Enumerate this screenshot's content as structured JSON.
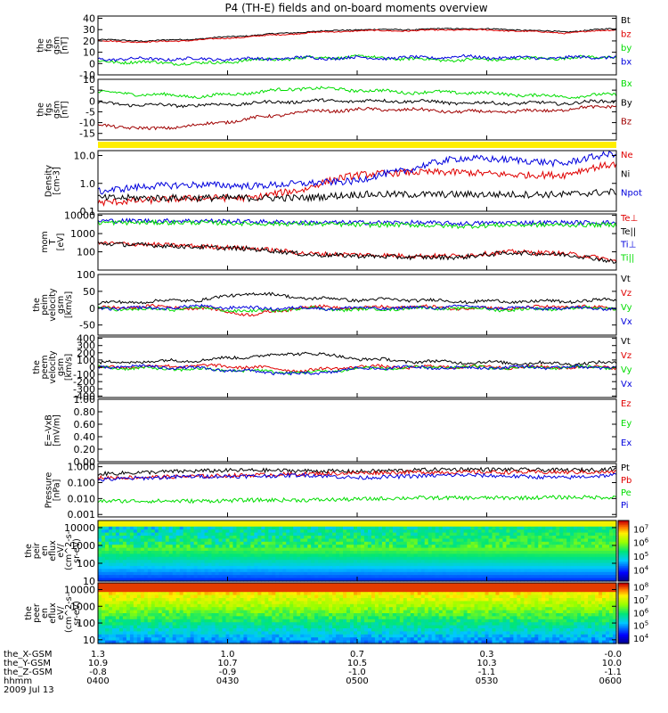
{
  "title": "P4 (TH-E) fields and on-board moments overview",
  "time_axis": {
    "tick_labels": [
      "0400",
      "0430",
      "0500",
      "0530",
      "0600"
    ],
    "row_labels": [
      "the_X-GSM",
      "the_Y-GSM",
      "the_Z-GSM",
      "hhmm",
      "2009 Jul 13"
    ],
    "x_gsm": [
      "1.3",
      "1.0",
      "0.7",
      "0.3",
      "-0.0"
    ],
    "y_gsm": [
      "10.9",
      "10.7",
      "10.5",
      "10.3",
      "10.0"
    ],
    "z_gsm": [
      "-0.8",
      "-0.9",
      "-1.0",
      "-1.1",
      "-1.1"
    ]
  },
  "colors": {
    "black": "#000000",
    "red": "#e00000",
    "green": "#00dd00",
    "blue": "#0000dd",
    "darkred": "#a00000",
    "yellow": "#ffee00"
  },
  "chart_data": [
    {
      "type": "line",
      "id": "fgs_tot",
      "scale": "linear",
      "ylabel": [
        "the",
        "fgs",
        "gsm",
        "[nT]"
      ],
      "ylim": [
        -10,
        42
      ],
      "yticks": [
        "40",
        "30",
        "20",
        "10",
        "0",
        "-10"
      ],
      "yticks_v": [
        40,
        30,
        20,
        10,
        0,
        -10
      ],
      "series": [
        {
          "name": "Bt",
          "color": "#000000",
          "x": [
            0,
            0.1,
            0.2,
            0.3,
            0.4,
            0.5,
            0.6,
            0.7,
            0.8,
            0.9,
            1.0
          ],
          "values": [
            21,
            20,
            22,
            25,
            28,
            30,
            30,
            31,
            30,
            28,
            31
          ]
        },
        {
          "name": "bz",
          "color": "#e00000",
          "x": [
            0,
            0.1,
            0.2,
            0.3,
            0.4,
            0.5,
            0.6,
            0.7,
            0.8,
            0.9,
            1.0
          ],
          "values": [
            20,
            19,
            21,
            24,
            27,
            29,
            29,
            30,
            29,
            27,
            30
          ]
        },
        {
          "name": "by",
          "color": "#00dd00",
          "x": [
            0,
            0.1,
            0.2,
            0.3,
            0.4,
            0.5,
            0.6,
            0.7,
            0.8,
            0.9,
            1.0
          ],
          "values": [
            2,
            1,
            0,
            3,
            5,
            6,
            4,
            3,
            4,
            5,
            6
          ]
        },
        {
          "name": "bx",
          "color": "#0000dd",
          "x": [
            0,
            0.1,
            0.2,
            0.3,
            0.4,
            0.5,
            0.6,
            0.7,
            0.8,
            0.9,
            1.0
          ],
          "values": [
            4,
            4,
            4,
            4,
            5,
            5,
            5,
            6,
            5,
            5,
            6
          ]
        }
      ]
    },
    {
      "type": "line",
      "id": "fgs_comp",
      "scale": "linear",
      "ylabel": [
        "the",
        "fgs",
        "gsm",
        "[nT]"
      ],
      "ylim": [
        -18,
        10
      ],
      "yticks": [
        "10",
        "5",
        "0",
        "-5",
        "-10",
        "-15"
      ],
      "yticks_v": [
        10,
        5,
        0,
        -5,
        -10,
        -15
      ],
      "series": [
        {
          "name": "Bx",
          "color": "#00dd00",
          "x": [
            0,
            0.1,
            0.2,
            0.3,
            0.4,
            0.5,
            0.6,
            0.7,
            0.8,
            0.9,
            1.0
          ],
          "values": [
            4,
            3,
            2,
            4,
            6,
            5,
            4,
            4,
            3,
            2,
            3
          ]
        },
        {
          "name": "By",
          "color": "#000000",
          "x": [
            0,
            0.1,
            0.2,
            0.3,
            0.4,
            0.5,
            0.6,
            0.7,
            0.8,
            0.9,
            1.0
          ],
          "values": [
            -1,
            -2,
            -2,
            -1,
            0,
            0,
            0,
            -1,
            -1,
            -1,
            0
          ]
        },
        {
          "name": "Bz",
          "color": "#a00000",
          "x": [
            0,
            0.1,
            0.2,
            0.3,
            0.4,
            0.5,
            0.6,
            0.7,
            0.8,
            0.9,
            1.0
          ],
          "values": [
            -11,
            -13,
            -11,
            -8,
            -5,
            -4,
            -4,
            -5,
            -5,
            -4,
            -2
          ]
        }
      ]
    },
    {
      "type": "line",
      "id": "density",
      "scale": "log",
      "ylabel": [
        "Density",
        "[cm-3]"
      ],
      "ylim": [
        0.1,
        15
      ],
      "yticks": [
        "10.0",
        "1.0",
        "0.1"
      ],
      "yticks_v": [
        10,
        1,
        0.1
      ],
      "series": [
        {
          "name": "Ne",
          "color": "#e00000",
          "x": [
            0,
            0.1,
            0.2,
            0.3,
            0.4,
            0.5,
            0.6,
            0.7,
            0.8,
            0.9,
            1.0
          ],
          "values": [
            0.2,
            0.25,
            0.3,
            0.3,
            0.6,
            2.0,
            2.5,
            2.5,
            2.0,
            2.0,
            5.0
          ]
        },
        {
          "name": "Ni",
          "color": "#000000",
          "x": [
            0,
            0.1,
            0.2,
            0.3,
            0.4,
            0.5,
            0.6,
            0.7,
            0.8,
            0.9,
            1.0
          ],
          "values": [
            0.3,
            0.3,
            0.3,
            0.3,
            0.3,
            0.4,
            0.4,
            0.4,
            0.4,
            0.4,
            0.5
          ]
        },
        {
          "name": "Npot",
          "color": "#0000dd",
          "x": [
            0,
            0.1,
            0.2,
            0.3,
            0.4,
            0.5,
            0.6,
            0.7,
            0.8,
            0.9,
            1.0
          ],
          "values": [
            0.5,
            0.8,
            0.9,
            0.8,
            1.0,
            1.2,
            3.0,
            8.0,
            7.0,
            5.0,
            12.0
          ]
        }
      ]
    },
    {
      "type": "line",
      "id": "mom",
      "scale": "log",
      "ylabel": [
        "mom",
        "T",
        "[eV]"
      ],
      "ylim": [
        10,
        12000
      ],
      "yticks": [
        "10000",
        "1000",
        "100"
      ],
      "yticks_v": [
        10000,
        1000,
        100
      ],
      "series": [
        {
          "name": "Te⊥",
          "color": "#e00000",
          "x": [
            0,
            0.1,
            0.2,
            0.3,
            0.4,
            0.5,
            0.6,
            0.7,
            0.8,
            0.9,
            1.0
          ],
          "values": [
            300,
            250,
            200,
            150,
            80,
            70,
            60,
            60,
            100,
            80,
            30
          ]
        },
        {
          "name": "Te||",
          "color": "#000000",
          "x": [
            0,
            0.1,
            0.2,
            0.3,
            0.4,
            0.5,
            0.6,
            0.7,
            0.8,
            0.9,
            1.0
          ],
          "values": [
            280,
            230,
            180,
            140,
            70,
            60,
            50,
            50,
            90,
            70,
            25
          ]
        },
        {
          "name": "Ti⊥",
          "color": "#0000dd",
          "x": [
            0,
            0.1,
            0.2,
            0.3,
            0.4,
            0.5,
            0.6,
            0.7,
            0.8,
            0.9,
            1.0
          ],
          "values": [
            5000,
            5000,
            5000,
            4500,
            4000,
            4000,
            4000,
            3500,
            4000,
            4000,
            4000
          ]
        },
        {
          "name": "Ti||",
          "color": "#00dd00",
          "x": [
            0,
            0.1,
            0.2,
            0.3,
            0.4,
            0.5,
            0.6,
            0.7,
            0.8,
            0.9,
            1.0
          ],
          "values": [
            4000,
            4000,
            4000,
            3500,
            3500,
            3000,
            3000,
            2500,
            3000,
            3000,
            3000
          ]
        }
      ]
    },
    {
      "type": "line",
      "id": "peim",
      "scale": "linear",
      "ylabel": [
        "the",
        "peim",
        "velocity",
        "gsm",
        "[km/s]"
      ],
      "ylim": [
        -80,
        100
      ],
      "yticks": [
        "100",
        "50",
        "0",
        "-50"
      ],
      "yticks_v": [
        100,
        50,
        0,
        -50
      ],
      "series": [
        {
          "name": "Vt",
          "color": "#000000",
          "x": [
            0,
            0.1,
            0.2,
            0.3,
            0.4,
            0.5,
            0.6,
            0.7,
            0.8,
            0.9,
            1.0
          ],
          "values": [
            15,
            20,
            25,
            45,
            30,
            25,
            25,
            20,
            20,
            20,
            25
          ]
        },
        {
          "name": "Vz",
          "color": "#e00000",
          "x": [
            0,
            0.1,
            0.2,
            0.3,
            0.4,
            0.5,
            0.6,
            0.7,
            0.8,
            0.9,
            1.0
          ],
          "values": [
            0,
            5,
            0,
            -20,
            5,
            0,
            5,
            0,
            0,
            5,
            0
          ]
        },
        {
          "name": "Vy",
          "color": "#00dd00",
          "x": [
            0,
            0.1,
            0.2,
            0.3,
            0.4,
            0.5,
            0.6,
            0.7,
            0.8,
            0.9,
            1.0
          ],
          "values": [
            0,
            -5,
            0,
            -10,
            0,
            -5,
            0,
            0,
            -5,
            0,
            0
          ]
        },
        {
          "name": "Vx",
          "color": "#0000dd",
          "x": [
            0,
            0.1,
            0.2,
            0.3,
            0.4,
            0.5,
            0.6,
            0.7,
            0.8,
            0.9,
            1.0
          ],
          "values": [
            0,
            0,
            5,
            0,
            0,
            0,
            0,
            5,
            0,
            0,
            0
          ]
        }
      ]
    },
    {
      "type": "line",
      "id": "peem",
      "scale": "linear",
      "ylabel": [
        "the",
        "peem",
        "velocity",
        "gsm",
        "[km/s]"
      ],
      "ylim": [
        -420,
        420
      ],
      "yticks": [
        "400",
        "300",
        "200",
        "100",
        "0",
        "-100",
        "-200",
        "-300",
        "-400"
      ],
      "yticks_v": [
        400,
        300,
        200,
        100,
        0,
        -100,
        -200,
        -300,
        -400
      ],
      "series": [
        {
          "name": "Vt",
          "color": "#000000",
          "x": [
            0,
            0.1,
            0.2,
            0.3,
            0.4,
            0.5,
            0.6,
            0.7,
            0.8,
            0.9,
            1.0
          ],
          "values": [
            60,
            80,
            100,
            150,
            200,
            120,
            80,
            70,
            60,
            50,
            60
          ]
        },
        {
          "name": "Vz",
          "color": "#e00000",
          "x": [
            0,
            0.1,
            0.2,
            0.3,
            0.4,
            0.5,
            0.6,
            0.7,
            0.8,
            0.9,
            1.0
          ],
          "values": [
            0,
            10,
            20,
            0,
            -50,
            10,
            0,
            10,
            0,
            0,
            0
          ]
        },
        {
          "name": "Vy",
          "color": "#00dd00",
          "x": [
            0,
            0.1,
            0.2,
            0.3,
            0.4,
            0.5,
            0.6,
            0.7,
            0.8,
            0.9,
            1.0
          ],
          "values": [
            0,
            -20,
            -30,
            -50,
            -80,
            -20,
            -10,
            0,
            -10,
            0,
            0
          ]
        },
        {
          "name": "Vx",
          "color": "#0000dd",
          "x": [
            0,
            0.1,
            0.2,
            0.3,
            0.4,
            0.5,
            0.6,
            0.7,
            0.8,
            0.9,
            1.0
          ],
          "values": [
            0,
            10,
            -20,
            -60,
            -100,
            -20,
            0,
            -10,
            0,
            0,
            0
          ]
        }
      ]
    },
    {
      "type": "line",
      "id": "exb",
      "scale": "linear",
      "ylabel": [
        "E=-VxB",
        "[mV/m]"
      ],
      "ylim": [
        0,
        1
      ],
      "yticks": [
        "1.00",
        "0.80",
        "0.60",
        "0.40",
        "0.20",
        "0.00"
      ],
      "yticks_v": [
        1,
        0.8,
        0.6,
        0.4,
        0.2,
        0
      ],
      "series": [
        {
          "name": "Ez",
          "color": "#e00000",
          "x": [],
          "values": []
        },
        {
          "name": "Ey",
          "color": "#00dd00",
          "x": [],
          "values": []
        },
        {
          "name": "Ex",
          "color": "#0000dd",
          "x": [],
          "values": []
        }
      ]
    },
    {
      "type": "line",
      "id": "pressure",
      "scale": "log",
      "ylabel": [
        "Pressure",
        "[nPa]"
      ],
      "ylim": [
        0.0007,
        1.6
      ],
      "yticks": [
        "1.000",
        "0.100",
        "0.010",
        "0.001"
      ],
      "yticks_v": [
        1,
        0.1,
        0.01,
        0.001
      ],
      "series": [
        {
          "name": "Pt",
          "color": "#000000",
          "x": [
            0,
            0.1,
            0.2,
            0.3,
            0.4,
            0.5,
            0.6,
            0.7,
            0.8,
            0.9,
            1.0
          ],
          "values": [
            0.35,
            0.45,
            0.55,
            0.6,
            0.55,
            0.5,
            0.6,
            0.7,
            0.65,
            0.6,
            0.7
          ]
        },
        {
          "name": "Pb",
          "color": "#e00000",
          "x": [
            0,
            0.1,
            0.2,
            0.3,
            0.4,
            0.5,
            0.6,
            0.7,
            0.8,
            0.9,
            1.0
          ],
          "values": [
            0.2,
            0.22,
            0.25,
            0.3,
            0.35,
            0.4,
            0.45,
            0.45,
            0.45,
            0.45,
            0.45
          ]
        },
        {
          "name": "Pe",
          "color": "#00dd00",
          "x": [
            0,
            0.1,
            0.2,
            0.3,
            0.4,
            0.5,
            0.6,
            0.7,
            0.8,
            0.9,
            1.0
          ],
          "values": [
            0.007,
            0.007,
            0.007,
            0.008,
            0.008,
            0.009,
            0.011,
            0.011,
            0.011,
            0.012,
            0.012
          ]
        },
        {
          "name": "Pi",
          "color": "#0000dd",
          "x": [
            0,
            0.1,
            0.2,
            0.3,
            0.4,
            0.5,
            0.6,
            0.7,
            0.8,
            0.9,
            1.0
          ],
          "values": [
            0.15,
            0.2,
            0.25,
            0.25,
            0.3,
            0.2,
            0.25,
            0.3,
            0.25,
            0.2,
            0.3
          ]
        }
      ]
    },
    {
      "type": "heatmap",
      "id": "peir_spec",
      "scale": "log",
      "ylabel": [
        "the",
        "peir",
        "en",
        "eflux",
        "eV/",
        "(cm^2-s-",
        "sr-eV)"
      ],
      "ylim": [
        10,
        25000
      ],
      "yticks": [
        "10000",
        "1000",
        "100",
        "10"
      ],
      "yticks_v": [
        10000,
        1000,
        100,
        10
      ],
      "colorbar_ticks": [
        "10^7",
        "10^6",
        "10^5",
        "10^4"
      ],
      "colorbar_exps": [
        7,
        6,
        5,
        4
      ],
      "colorbar_range": [
        3.2,
        7.6
      ]
    },
    {
      "type": "heatmap",
      "id": "peer_spec",
      "scale": "log",
      "ylabel": [
        "the",
        "peer",
        "en",
        "eflux",
        "eV/",
        "(cm^2-s-",
        "sr-eV)"
      ],
      "ylim": [
        6,
        25000
      ],
      "yticks": [
        "10000",
        "1000",
        "100",
        "10"
      ],
      "yticks_v": [
        10000,
        1000,
        100,
        10
      ],
      "colorbar_ticks": [
        "10^8",
        "10^7",
        "10^6",
        "10^5",
        "10^4"
      ],
      "colorbar_exps": [
        8,
        7,
        6,
        5,
        4
      ],
      "colorbar_range": [
        3.6,
        8.3
      ]
    }
  ]
}
